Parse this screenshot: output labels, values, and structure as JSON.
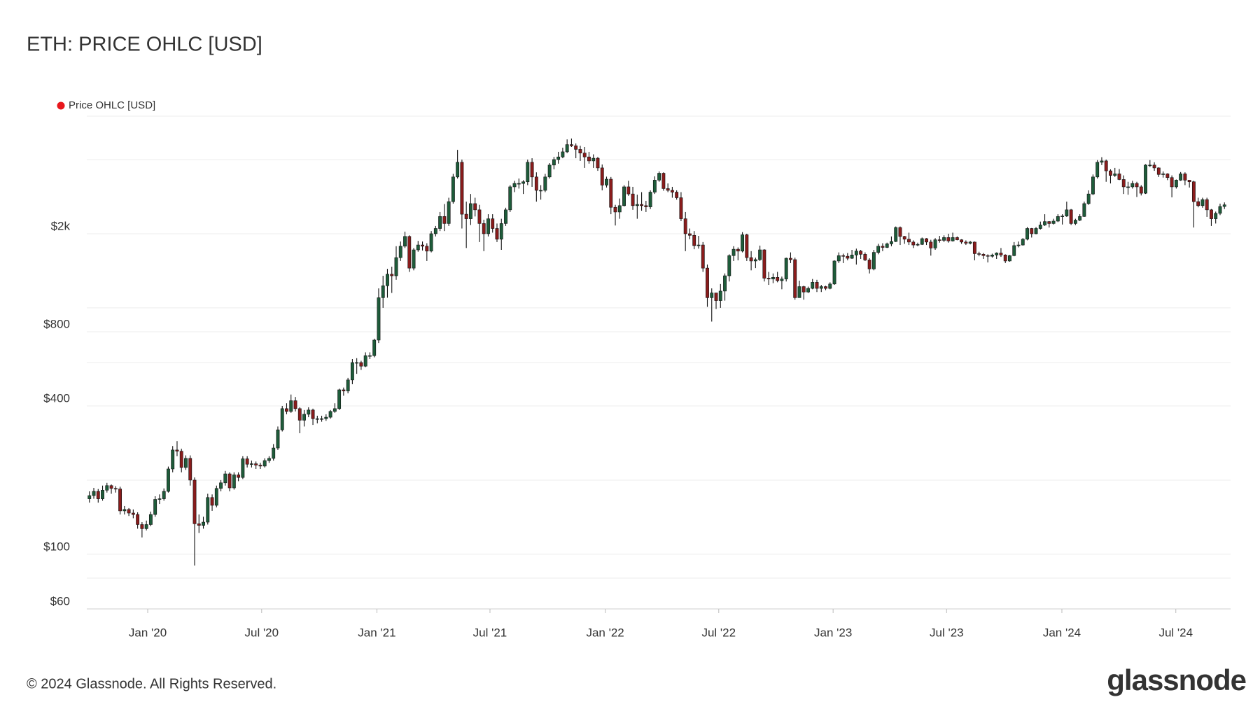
{
  "chart_data": {
    "type": "candlestick",
    "title": "ETH: PRICE OHLC [USD]",
    "log_scale": true,
    "grid": true,
    "ylim": [
      60,
      6000
    ],
    "yticks": [
      {
        "value": 60,
        "label": "$60"
      },
      {
        "value": 100,
        "label": "$100"
      },
      {
        "value": 400,
        "label": "$400"
      },
      {
        "value": 800,
        "label": "$800"
      },
      {
        "value": 2000,
        "label": "$2k"
      }
    ],
    "grid_values": [
      80,
      200,
      600,
      1000,
      4000,
      6000
    ],
    "xlim": [
      -0.6,
      260.4
    ],
    "xticks": [
      {
        "value": 13.3,
        "label": "Jan '20"
      },
      {
        "value": 39.3,
        "label": "Jul '20"
      },
      {
        "value": 65.6,
        "label": "Jan '21"
      },
      {
        "value": 91.4,
        "label": "Jul '21"
      },
      {
        "value": 117.7,
        "label": "Jan '22"
      },
      {
        "value": 143.6,
        "label": "Jul '22"
      },
      {
        "value": 169.7,
        "label": "Jan '23"
      },
      {
        "value": 195.6,
        "label": "Jul '23"
      },
      {
        "value": 221.9,
        "label": "Jan '24"
      },
      {
        "value": 247.9,
        "label": "Jul '24"
      }
    ],
    "series": [
      {
        "name": "Price OHLC [USD]",
        "color": "#e8171c",
        "up_color": "#1e5c3a",
        "down_color": "#8a1c1c",
        "open": [
          168,
          173,
          180,
          168,
          182,
          190,
          185,
          184,
          150,
          152,
          147,
          145,
          132,
          127,
          132,
          145,
          167,
          168,
          180,
          222,
          265,
          262,
          225,
          245,
          200,
          133,
          131,
          135,
          170,
          158,
          185,
          195,
          212,
          186,
          210,
          205,
          244,
          232,
          233,
          230,
          228,
          240,
          245,
          270,
          320,
          390,
          380,
          420,
          390,
          350,
          370,
          385,
          355,
          355,
          355,
          360,
          380,
          390,
          465,
          460,
          510,
          600,
          600,
          580,
          640,
          640,
          740,
          1100,
          1230,
          1370,
          1350,
          1600,
          1780,
          1950,
          1450,
          1720,
          1800,
          1780,
          1700,
          2000,
          2100,
          2350,
          2200,
          2700,
          3400,
          3900,
          2400,
          2300,
          2650,
          2500,
          2200,
          2000,
          2300,
          2100,
          1900,
          2200,
          2500,
          3100,
          3200,
          3200,
          3250,
          3900,
          3400,
          3000,
          3000,
          3400,
          3800,
          4000,
          4100,
          4300,
          4600,
          4550,
          4400,
          4250,
          4100,
          3950,
          4050,
          3700,
          3150,
          3330,
          2560,
          2450,
          2600,
          3100,
          2900,
          2600,
          2630,
          2600,
          2570,
          2950,
          3300,
          3520,
          3050,
          3000,
          2950,
          2800,
          2300,
          2000,
          1970,
          1790,
          1800,
          1450,
          1100,
          1150,
          1070,
          1170,
          1350,
          1630,
          1730,
          1700,
          1980,
          1600,
          1550,
          1570,
          1720,
          1320,
          1310,
          1330,
          1290,
          1310,
          1590,
          1570,
          1100,
          1220,
          1160,
          1200,
          1270,
          1200,
          1220,
          1200,
          1250,
          1550,
          1630,
          1620,
          1590,
          1640,
          1700,
          1650,
          1565,
          1440,
          1680,
          1780,
          1760,
          1820,
          1860,
          2120,
          1950,
          1900,
          1850,
          1800,
          1810,
          1910,
          1850,
          1750,
          1890,
          1880,
          1930,
          1870,
          1930,
          1890,
          1850,
          1830,
          1850,
          1660,
          1650,
          1630,
          1620,
          1640,
          1670,
          1640,
          1550,
          1630,
          1790,
          1800,
          1900,
          2100,
          2000,
          2100,
          2170,
          2240,
          2200,
          2250,
          2350,
          2360,
          2500,
          2200,
          2270,
          2350,
          2650,
          2900,
          3400,
          3900,
          3950,
          3600,
          3450,
          3500,
          3320,
          3100,
          3100,
          3200,
          3100,
          2920,
          3800,
          3800,
          3700,
          3480,
          3500,
          3380,
          3100,
          3300,
          3500,
          3300,
          3250,
          2700,
          2600,
          2750,
          2500,
          2300,
          2420,
          2580
        ],
        "high": [
          180,
          186,
          184,
          190,
          195,
          192,
          189,
          188,
          157,
          154,
          152,
          148,
          135,
          137,
          149,
          172,
          175,
          185,
          227,
          275,
          288,
          268,
          252,
          252,
          205,
          145,
          142,
          176,
          175,
          190,
          200,
          218,
          215,
          215,
          215,
          250,
          250,
          240,
          238,
          235,
          245,
          250,
          280,
          330,
          400,
          410,
          445,
          435,
          395,
          385,
          395,
          390,
          365,
          365,
          370,
          385,
          410,
          470,
          475,
          520,
          620,
          625,
          610,
          660,
          660,
          750,
          1200,
          1350,
          1440,
          1470,
          1780,
          1860,
          2040,
          1970,
          1750,
          1870,
          1860,
          1830,
          2050,
          2150,
          2450,
          2640,
          2800,
          3500,
          4380,
          4000,
          2700,
          2900,
          2800,
          2620,
          2280,
          2400,
          2400,
          2200,
          2300,
          2550,
          3150,
          3280,
          3350,
          3300,
          4000,
          4050,
          3550,
          3150,
          3500,
          3870,
          4100,
          4300,
          4470,
          4830,
          4870,
          4650,
          4550,
          4500,
          4300,
          4200,
          4100,
          3820,
          3410,
          3400,
          2620,
          2780,
          3150,
          3280,
          3100,
          2880,
          2950,
          2720,
          3000,
          3420,
          3580,
          3550,
          3200,
          3100,
          3000,
          2950,
          2450,
          2100,
          2050,
          1960,
          1850,
          1500,
          1200,
          1150,
          1250,
          1380,
          1650,
          1780,
          1760,
          2030,
          2000,
          1700,
          1600,
          1790,
          1730,
          1400,
          1380,
          1400,
          1340,
          1600,
          1680,
          1600,
          1290,
          1230,
          1220,
          1310,
          1300,
          1240,
          1230,
          1270,
          1560,
          1680,
          1660,
          1670,
          1720,
          1740,
          1720,
          1680,
          1590,
          1720,
          1820,
          1830,
          1840,
          1950,
          2140,
          2140,
          1960,
          2020,
          1880,
          1840,
          1930,
          1920,
          1890,
          1920,
          1960,
          1970,
          2000,
          2020,
          1950,
          1900,
          1880,
          1870,
          1860,
          1690,
          1670,
          1650,
          1660,
          1680,
          1750,
          1650,
          1640,
          1850,
          1860,
          1920,
          2130,
          2110,
          2130,
          2240,
          2400,
          2250,
          2300,
          2400,
          2400,
          2700,
          2520,
          2300,
          2400,
          2700,
          3000,
          3480,
          3980,
          4090,
          4000,
          3650,
          3700,
          3660,
          3450,
          3250,
          3280,
          3250,
          3150,
          3830,
          3980,
          3900,
          3720,
          3580,
          3520,
          3450,
          3320,
          3560,
          3550,
          3300,
          3280,
          2800,
          2800,
          2800,
          2520,
          2460,
          2650,
          2680
        ],
        "low": [
          162,
          168,
          162,
          165,
          178,
          176,
          178,
          145,
          145,
          143,
          140,
          127,
          117,
          125,
          130,
          142,
          160,
          165,
          178,
          215,
          250,
          215,
          220,
          190,
          90,
          122,
          127,
          132,
          150,
          155,
          180,
          190,
          180,
          183,
          198,
          202,
          225,
          225,
          222,
          222,
          225,
          235,
          240,
          265,
          315,
          370,
          375,
          380,
          310,
          330,
          360,
          335,
          340,
          345,
          348,
          355,
          375,
          385,
          440,
          450,
          490,
          540,
          560,
          575,
          620,
          630,
          720,
          1000,
          1100,
          1150,
          1300,
          1550,
          1750,
          1400,
          1420,
          1690,
          1710,
          1550,
          1680,
          1950,
          2050,
          2050,
          2150,
          2650,
          3350,
          2100,
          1750,
          2170,
          2350,
          1850,
          1700,
          1950,
          2020,
          1850,
          1720,
          2150,
          2450,
          2950,
          3050,
          2900,
          3150,
          3100,
          2700,
          2750,
          2950,
          3350,
          3650,
          3850,
          4050,
          4250,
          4500,
          4050,
          3950,
          3700,
          3850,
          3700,
          3600,
          3000,
          3080,
          2400,
          2160,
          2300,
          2580,
          2850,
          2500,
          2300,
          2480,
          2450,
          2520,
          2900,
          3250,
          2990,
          2950,
          2800,
          2750,
          2250,
          1700,
          1900,
          1730,
          1740,
          1400,
          1010,
          880,
          990,
          1000,
          1070,
          1280,
          1550,
          1560,
          1680,
          1550,
          1420,
          1450,
          1550,
          1280,
          1240,
          1260,
          1270,
          1190,
          1280,
          1520,
          1080,
          1100,
          1080,
          1150,
          1190,
          1160,
          1160,
          1180,
          1190,
          1240,
          1520,
          1520,
          1560,
          1580,
          1500,
          1580,
          1550,
          1380,
          1420,
          1650,
          1700,
          1750,
          1780,
          1850,
          1800,
          1820,
          1800,
          1750,
          1780,
          1800,
          1800,
          1630,
          1720,
          1840,
          1850,
          1840,
          1860,
          1880,
          1820,
          1800,
          1810,
          1560,
          1620,
          1580,
          1530,
          1600,
          1580,
          1610,
          1520,
          1540,
          1620,
          1760,
          1790,
          1880,
          1930,
          1990,
          2080,
          2150,
          2120,
          2180,
          2230,
          2180,
          2340,
          2170,
          2170,
          2250,
          2340,
          2620,
          2870,
          3350,
          3800,
          3250,
          3200,
          3400,
          3300,
          2900,
          2880,
          3050,
          2820,
          2860,
          2900,
          3730,
          3600,
          3400,
          3380,
          3300,
          2810,
          3050,
          3280,
          3150,
          3080,
          2120,
          2560,
          2550,
          2340,
          2150,
          2200,
          2380,
          2520
        ],
        "close": [
          173,
          180,
          168,
          182,
          190,
          185,
          184,
          150,
          152,
          147,
          145,
          132,
          127,
          132,
          145,
          167,
          168,
          180,
          222,
          265,
          262,
          225,
          245,
          200,
          133,
          131,
          135,
          170,
          158,
          185,
          195,
          212,
          186,
          210,
          205,
          244,
          232,
          233,
          230,
          228,
          240,
          245,
          270,
          320,
          390,
          380,
          420,
          390,
          350,
          370,
          385,
          355,
          355,
          355,
          360,
          380,
          390,
          465,
          460,
          510,
          600,
          600,
          580,
          640,
          640,
          740,
          1100,
          1230,
          1370,
          1350,
          1600,
          1780,
          1950,
          1450,
          1720,
          1800,
          1780,
          1700,
          2000,
          2100,
          2350,
          2200,
          2700,
          3400,
          3900,
          2400,
          2300,
          2650,
          2500,
          2200,
          2000,
          2300,
          2100,
          1900,
          2200,
          2500,
          3100,
          3200,
          3200,
          3250,
          3900,
          3400,
          3000,
          3000,
          3400,
          3800,
          4000,
          4100,
          4300,
          4600,
          4550,
          4400,
          4250,
          4100,
          3950,
          4050,
          3700,
          3150,
          3330,
          2560,
          2450,
          2600,
          3100,
          2900,
          2600,
          2630,
          2600,
          2570,
          2950,
          3300,
          3520,
          3050,
          3000,
          2950,
          2800,
          2300,
          2000,
          1970,
          1790,
          1800,
          1450,
          1100,
          1150,
          1070,
          1170,
          1350,
          1630,
          1730,
          1700,
          1980,
          1600,
          1550,
          1570,
          1720,
          1320,
          1310,
          1330,
          1290,
          1310,
          1590,
          1570,
          1100,
          1220,
          1160,
          1200,
          1270,
          1200,
          1220,
          1200,
          1250,
          1550,
          1630,
          1620,
          1590,
          1640,
          1700,
          1650,
          1565,
          1440,
          1680,
          1780,
          1760,
          1820,
          1860,
          2120,
          1950,
          1900,
          1850,
          1800,
          1810,
          1910,
          1850,
          1750,
          1890,
          1880,
          1930,
          1870,
          1930,
          1890,
          1850,
          1830,
          1850,
          1660,
          1650,
          1630,
          1620,
          1640,
          1670,
          1640,
          1550,
          1630,
          1790,
          1800,
          1900,
          2100,
          2000,
          2100,
          2170,
          2240,
          2200,
          2250,
          2350,
          2360,
          2500,
          2200,
          2270,
          2350,
          2650,
          2900,
          3400,
          3900,
          3950,
          3600,
          3450,
          3500,
          3320,
          3100,
          3100,
          3200,
          3100,
          2920,
          3800,
          3800,
          3700,
          3480,
          3500,
          3380,
          3100,
          3300,
          3500,
          3300,
          3250,
          2700,
          2600,
          2750,
          2500,
          2300,
          2420,
          2580,
          2620
        ]
      }
    ]
  },
  "footer": {
    "copyright": "© 2024 Glassnode. All Rights Reserved.",
    "brand": "glassnode"
  }
}
